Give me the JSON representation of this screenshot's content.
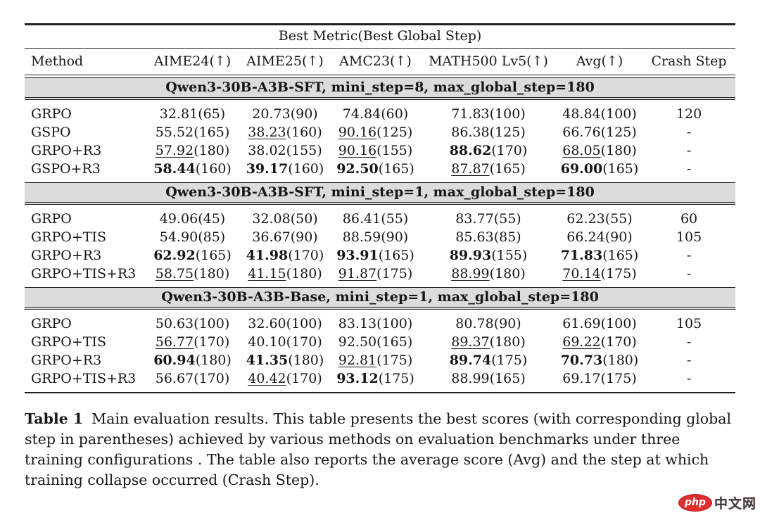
{
  "table": {
    "title": "Best Metric(Best Global Step)",
    "columns": [
      "Method",
      "AIME24(↑)",
      "AIME25(↑)",
      "AMC23(↑)",
      "MATH500 Lv5(↑)",
      "Avg(↑)",
      "Crash Step"
    ],
    "sections": [
      {
        "header": "Qwen3-30B-A3B-SFT, mini_step=8, max_global_step=180",
        "rows": [
          {
            "method": "GRPO",
            "cells": [
              {
                "v": "32.81",
                "s": "(65)",
                "f": ""
              },
              {
                "v": "20.73",
                "s": "(90)",
                "f": ""
              },
              {
                "v": "74.84",
                "s": "(60)",
                "f": ""
              },
              {
                "v": "71.83",
                "s": "(100)",
                "f": ""
              },
              {
                "v": "48.84",
                "s": "(100)",
                "f": ""
              }
            ],
            "crash": "120"
          },
          {
            "method": "GSPO",
            "cells": [
              {
                "v": "55.52",
                "s": "(165)",
                "f": ""
              },
              {
                "v": "38.23",
                "s": "(160)",
                "f": "u"
              },
              {
                "v": "90.16",
                "s": "(125)",
                "f": "u"
              },
              {
                "v": "86.38",
                "s": "(125)",
                "f": ""
              },
              {
                "v": "66.76",
                "s": "(125)",
                "f": ""
              }
            ],
            "crash": "-"
          },
          {
            "method": "GRPO+R3",
            "cells": [
              {
                "v": "57.92",
                "s": "(180)",
                "f": "u"
              },
              {
                "v": "38.02",
                "s": "(155)",
                "f": ""
              },
              {
                "v": "90.16",
                "s": "(155)",
                "f": "u"
              },
              {
                "v": "88.62",
                "s": "(170)",
                "f": "b"
              },
              {
                "v": "68.05",
                "s": "(180)",
                "f": "u"
              }
            ],
            "crash": "-"
          },
          {
            "method": "GSPO+R3",
            "cells": [
              {
                "v": "58.44",
                "s": "(160)",
                "f": "b"
              },
              {
                "v": "39.17",
                "s": "(160)",
                "f": "b"
              },
              {
                "v": "92.50",
                "s": "(165)",
                "f": "b"
              },
              {
                "v": "87.87",
                "s": "(165)",
                "f": "u"
              },
              {
                "v": "69.00",
                "s": "(165)",
                "f": "b"
              }
            ],
            "crash": "-"
          }
        ]
      },
      {
        "header": "Qwen3-30B-A3B-SFT, mini_step=1, max_global_step=180",
        "rows": [
          {
            "method": "GRPO",
            "cells": [
              {
                "v": "49.06",
                "s": "(45)",
                "f": ""
              },
              {
                "v": "32.08",
                "s": "(50)",
                "f": ""
              },
              {
                "v": "86.41",
                "s": "(55)",
                "f": ""
              },
              {
                "v": "83.77",
                "s": "(55)",
                "f": ""
              },
              {
                "v": "62.23",
                "s": "(55)",
                "f": ""
              }
            ],
            "crash": "60"
          },
          {
            "method": "GRPO+TIS",
            "cells": [
              {
                "v": "54.90",
                "s": "(85)",
                "f": ""
              },
              {
                "v": "36.67",
                "s": "(90)",
                "f": ""
              },
              {
                "v": "88.59",
                "s": "(90)",
                "f": ""
              },
              {
                "v": "85.63",
                "s": "(85)",
                "f": ""
              },
              {
                "v": "66.24",
                "s": "(90)",
                "f": ""
              }
            ],
            "crash": "105"
          },
          {
            "method": "GRPO+R3",
            "cells": [
              {
                "v": "62.92",
                "s": "(165)",
                "f": "b"
              },
              {
                "v": "41.98",
                "s": "(170)",
                "f": "b"
              },
              {
                "v": "93.91",
                "s": "(165)",
                "f": "b"
              },
              {
                "v": "89.93",
                "s": "(155)",
                "f": "b"
              },
              {
                "v": "71.83",
                "s": "(165)",
                "f": "b"
              }
            ],
            "crash": "-"
          },
          {
            "method": "GRPO+TIS+R3",
            "cells": [
              {
                "v": "58.75",
                "s": "(180)",
                "f": "u"
              },
              {
                "v": "41.15",
                "s": "(180)",
                "f": "u"
              },
              {
                "v": "91.87",
                "s": "(175)",
                "f": "u"
              },
              {
                "v": "88.99",
                "s": "(180)",
                "f": "u"
              },
              {
                "v": "70.14",
                "s": "(175)",
                "f": "u"
              }
            ],
            "crash": "-"
          }
        ]
      },
      {
        "header": "Qwen3-30B-A3B-Base, mini_step=1, max_global_step=180",
        "rows": [
          {
            "method": "GRPO",
            "cells": [
              {
                "v": "50.63",
                "s": "(100)",
                "f": ""
              },
              {
                "v": "32.60",
                "s": "(100)",
                "f": ""
              },
              {
                "v": "83.13",
                "s": "(100)",
                "f": ""
              },
              {
                "v": "80.78",
                "s": "(90)",
                "f": ""
              },
              {
                "v": "61.69",
                "s": "(100)",
                "f": ""
              }
            ],
            "crash": "105"
          },
          {
            "method": "GRPO+TIS",
            "cells": [
              {
                "v": "56.77",
                "s": "(170)",
                "f": "u"
              },
              {
                "v": "40.10",
                "s": "(170)",
                "f": ""
              },
              {
                "v": "92.50",
                "s": "(165)",
                "f": ""
              },
              {
                "v": "89.37",
                "s": "(180)",
                "f": "u"
              },
              {
                "v": "69.22",
                "s": "(170)",
                "f": "u"
              }
            ],
            "crash": "-"
          },
          {
            "method": "GRPO+R3",
            "cells": [
              {
                "v": "60.94",
                "s": "(180)",
                "f": "b"
              },
              {
                "v": "41.35",
                "s": "(180)",
                "f": "b"
              },
              {
                "v": "92.81",
                "s": "(175)",
                "f": "u"
              },
              {
                "v": "89.74",
                "s": "(175)",
                "f": "b"
              },
              {
                "v": "70.73",
                "s": "(180)",
                "f": "b"
              }
            ],
            "crash": "-"
          },
          {
            "method": "GRPO+TIS+R3",
            "cells": [
              {
                "v": "56.67",
                "s": "(170)",
                "f": ""
              },
              {
                "v": "40.42",
                "s": "(170)",
                "f": "u"
              },
              {
                "v": "93.12",
                "s": "(175)",
                "f": "b"
              },
              {
                "v": "88.99",
                "s": "(165)",
                "f": ""
              },
              {
                "v": "69.17",
                "s": "(175)",
                "f": ""
              }
            ],
            "crash": "-"
          }
        ]
      }
    ]
  },
  "caption": {
    "label": "Table 1",
    "text": "Main evaluation results. This table presents the best scores (with corresponding global step in parentheses) achieved by various methods on evaluation benchmarks under three training configurations . The table also reports the average score (Avg) and the step at which training collapse occurred (Crash Step)."
  },
  "watermark": {
    "badge": "php",
    "text": "中文网"
  },
  "colors": {
    "band_bg": "#dcdcdc",
    "rule": "#222222",
    "watermark_red": "#e12d2d"
  }
}
